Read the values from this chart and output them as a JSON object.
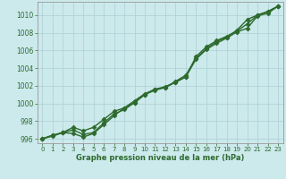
{
  "x": [
    0,
    1,
    2,
    3,
    4,
    5,
    6,
    7,
    8,
    9,
    10,
    11,
    12,
    13,
    14,
    15,
    16,
    17,
    18,
    19,
    20,
    21,
    22,
    23
  ],
  "line1": [
    996.0,
    996.3,
    996.7,
    997.0,
    996.5,
    996.7,
    997.8,
    998.8,
    999.3,
    1000.1,
    1001.0,
    1001.6,
    1001.8,
    1002.5,
    1003.2,
    1005.1,
    1006.2,
    1007.0,
    1007.5,
    1008.3,
    1009.5,
    1010.0,
    1010.4,
    1011.0
  ],
  "line2": [
    996.0,
    996.4,
    996.7,
    996.6,
    996.2,
    996.6,
    997.6,
    998.6,
    999.5,
    1000.3,
    1001.1,
    1001.6,
    1001.9,
    1002.4,
    1003.0,
    1005.3,
    1006.4,
    1007.1,
    1007.6,
    1008.2,
    1009.0,
    1010.0,
    1010.4,
    1011.0
  ],
  "line3": [
    996.0,
    996.4,
    996.7,
    997.3,
    996.9,
    997.3,
    998.2,
    999.1,
    999.5,
    1000.1,
    1001.0,
    1001.5,
    1001.8,
    1002.4,
    1003.0,
    1005.0,
    1006.1,
    1006.8,
    1007.4,
    1008.1,
    1008.5,
    1009.9,
    1010.2,
    1011.0
  ],
  "bg_color": "#cce9ec",
  "grid_color": "#aad0d4",
  "line_color": "#2d6a2d",
  "xlabel": "Graphe pression niveau de la mer (hPa)",
  "ylim": [
    995.5,
    1011.5
  ],
  "xlim": [
    -0.5,
    23.5
  ],
  "yticks": [
    996,
    998,
    1000,
    1002,
    1004,
    1006,
    1008,
    1010
  ],
  "xticks": [
    0,
    1,
    2,
    3,
    4,
    5,
    6,
    7,
    8,
    9,
    10,
    11,
    12,
    13,
    14,
    15,
    16,
    17,
    18,
    19,
    20,
    21,
    22,
    23
  ],
  "marker": "D",
  "markersize": 2.5,
  "linewidth": 1.0
}
